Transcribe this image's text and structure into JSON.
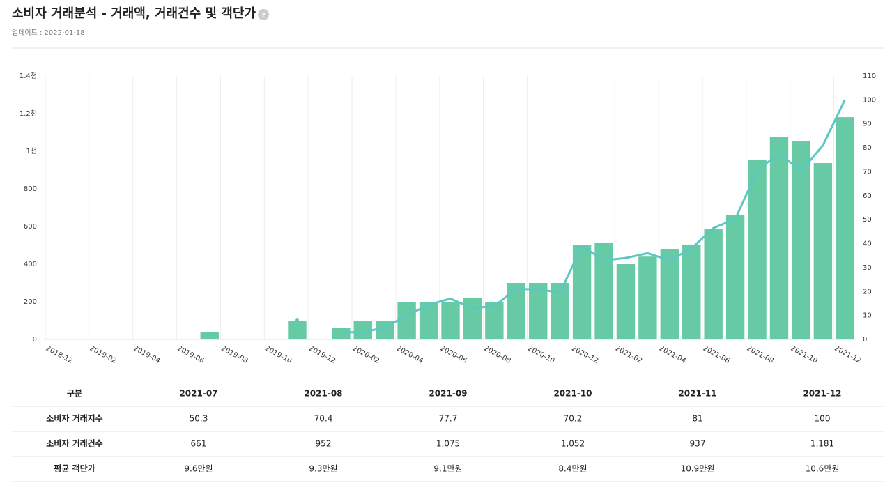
{
  "header": {
    "title": "소비자 거래분석 - 거래액, 거래건수 및 객단가",
    "help": "?",
    "updated": "업데이트 : 2022-01-18"
  },
  "chart_data": {
    "type": "bar-line",
    "categories": [
      "2018-12",
      null,
      "2019-02",
      null,
      "2019-04",
      null,
      "2019-06",
      null,
      "2019-08",
      null,
      "2019-10",
      null,
      "2019-12",
      null,
      "2020-02",
      null,
      "2020-04",
      null,
      "2020-06",
      null,
      "2020-08",
      null,
      "2020-10",
      null,
      "2020-12",
      null,
      "2021-02",
      null,
      "2021-04",
      null,
      "2021-06",
      null,
      "2021-08",
      null,
      "2021-10",
      null,
      "2021-12"
    ],
    "series": [
      {
        "name": "소비자 거래건수",
        "type": "bar",
        "color": "#66cba5",
        "values": [
          null,
          null,
          null,
          null,
          null,
          null,
          null,
          40,
          null,
          null,
          null,
          100,
          null,
          60,
          100,
          100,
          200,
          200,
          200,
          220,
          200,
          300,
          300,
          300,
          500,
          515,
          400,
          440,
          481,
          504,
          585,
          661,
          952,
          1075,
          1052,
          937,
          1181
        ]
      },
      {
        "name": "소비자 거래지수",
        "type": "line",
        "axis": "y2",
        "color": "#5cc6c0",
        "values": [
          null,
          null,
          null,
          null,
          null,
          null,
          null,
          2,
          null,
          null,
          null,
          8,
          null,
          3,
          3,
          5,
          10,
          14.5,
          17,
          13,
          14,
          21,
          21,
          19.5,
          39,
          33,
          34,
          36,
          33,
          38,
          46.5,
          50.3,
          70.4,
          77.7,
          70.2,
          81,
          100
        ]
      }
    ],
    "ylim": [
      0,
      1400
    ],
    "yticks": [
      0,
      200,
      400,
      600,
      800,
      {
        "value": 1000,
        "label": "1천"
      },
      {
        "value": 1200,
        "label": "1.2천"
      },
      {
        "value": 1400,
        "label": "1.4천"
      }
    ],
    "y2lim": [
      0,
      110
    ],
    "y2ticks": [
      0,
      10,
      20,
      30,
      40,
      50,
      60,
      70,
      80,
      90,
      100,
      110
    ],
    "grid": "x"
  },
  "table": {
    "header": [
      "구분",
      "2021-07",
      "2021-08",
      "2021-09",
      "2021-10",
      "2021-11",
      "2021-12"
    ],
    "rows": [
      [
        "소비자 거래지수",
        "50.3",
        "70.4",
        "77.7",
        "70.2",
        "81",
        "100"
      ],
      [
        "소비자 거래건수",
        "661",
        "952",
        "1,075",
        "1,052",
        "937",
        "1,181"
      ],
      [
        "평균 객단가",
        "9.6만원",
        "9.3만원",
        "9.1만원",
        "8.4만원",
        "10.9만원",
        "10.6만원"
      ]
    ]
  }
}
